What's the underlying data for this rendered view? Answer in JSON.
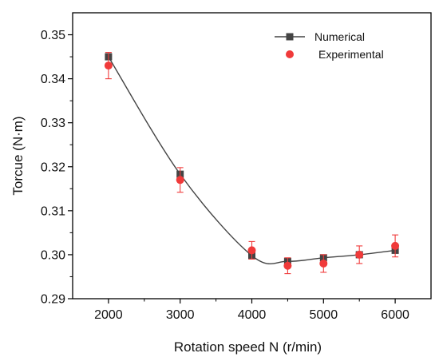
{
  "chart_data": {
    "type": "line",
    "title": "",
    "xlabel": "Rotation speed N (r/min)",
    "ylabel": "Torcue (N·m)",
    "xlim": [
      1500,
      6500
    ],
    "ylim": [
      0.29,
      0.355
    ],
    "x_ticks": [
      2000,
      3000,
      4000,
      5000,
      6000
    ],
    "y_ticks": [
      0.29,
      0.3,
      0.31,
      0.32,
      0.33,
      0.34,
      0.35
    ],
    "x_tick_labels": [
      "2000",
      "3000",
      "4000",
      "5000",
      "6000"
    ],
    "y_tick_labels": [
      "0.29",
      "0.30",
      "0.31",
      "0.32",
      "0.33",
      "0.34",
      "0.35"
    ],
    "grid": false,
    "legend_position": "top-right",
    "series": [
      {
        "name": "Numerical",
        "marker": "square",
        "color": "#444444",
        "line": "smooth",
        "x": [
          2000,
          3000,
          4000,
          4500,
          5000,
          5500,
          6000
        ],
        "y": [
          0.345,
          0.3183,
          0.2998,
          0.2985,
          0.2993,
          0.3,
          0.301
        ]
      },
      {
        "name": "Experimental",
        "marker": "circle",
        "color": "#f03a3a",
        "line": "none",
        "x": [
          2000,
          3000,
          4000,
          4500,
          5000,
          5500,
          6000
        ],
        "y": [
          0.343,
          0.317,
          0.301,
          0.2975,
          0.298,
          0.3,
          0.302
        ],
        "error": [
          0.003,
          0.0028,
          0.002,
          0.0018,
          0.002,
          0.002,
          0.0025
        ]
      }
    ]
  }
}
